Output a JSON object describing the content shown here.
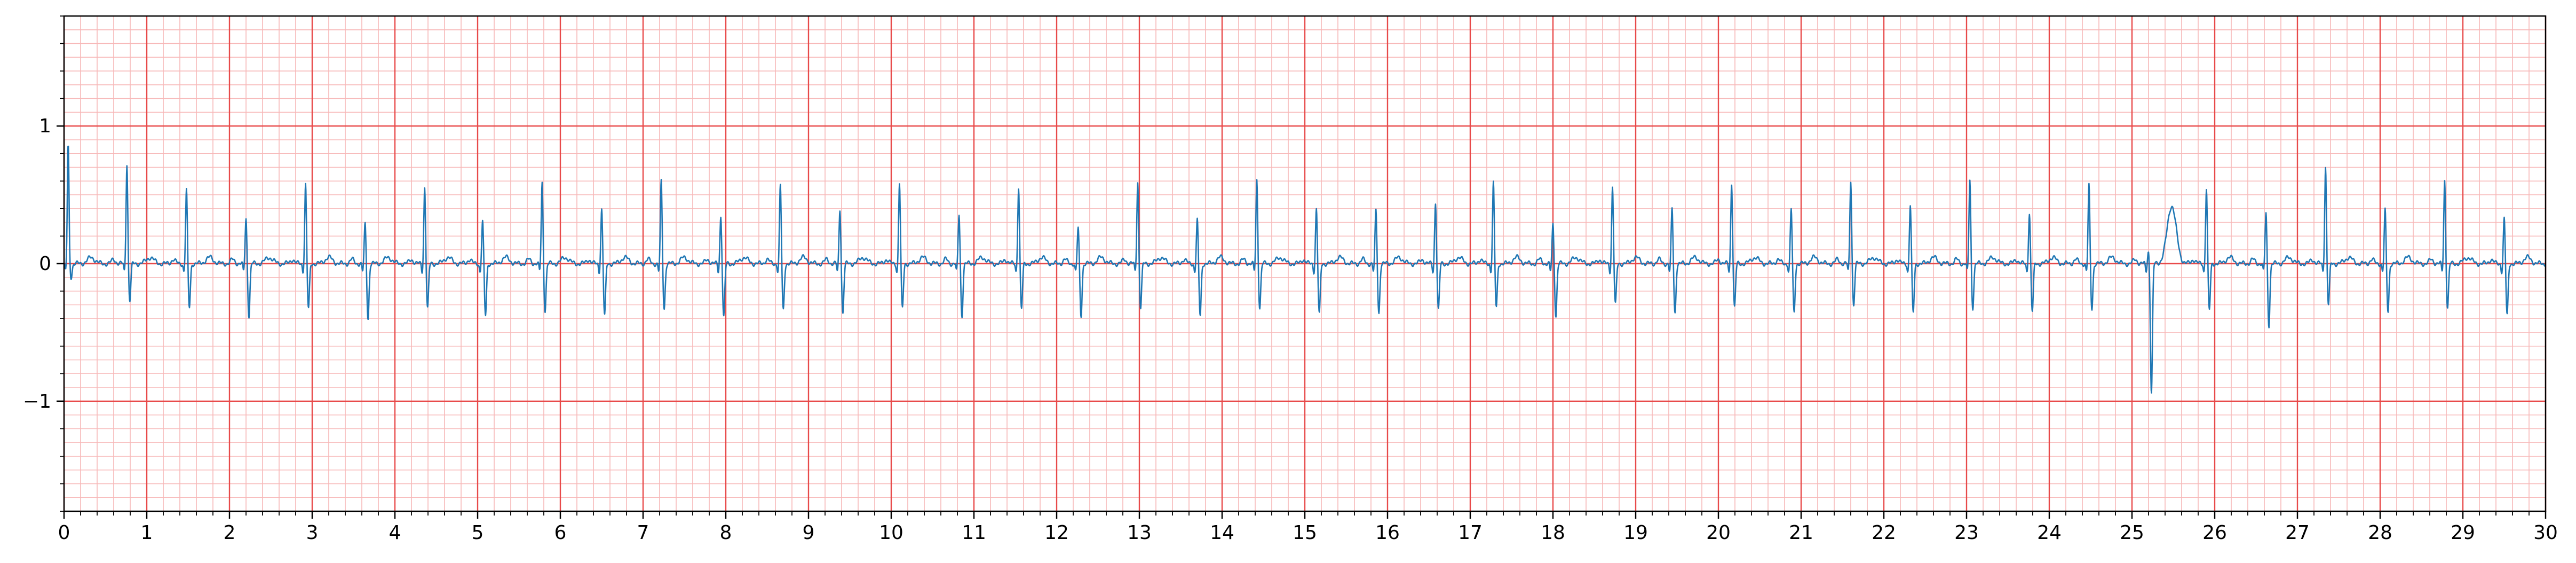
{
  "chart_data": {
    "type": "line",
    "title": "",
    "xlabel": "",
    "ylabel": "",
    "xlim": [
      0,
      30
    ],
    "ylim": [
      -1.8,
      1.8
    ],
    "x_ticks": [
      0,
      1,
      2,
      3,
      4,
      5,
      6,
      7,
      8,
      9,
      10,
      11,
      12,
      13,
      14,
      15,
      16,
      17,
      18,
      19,
      20,
      21,
      22,
      23,
      24,
      25,
      26,
      27,
      28,
      29,
      30
    ],
    "y_ticks": [
      -1,
      0,
      1
    ],
    "y_tick_labels": [
      "−1",
      "0",
      "1"
    ],
    "grid": true,
    "grid_major_color": "#e84a4a",
    "grid_minor_color": "#f7b8b8",
    "line_color": "#1f77b4",
    "series": [
      {
        "name": "",
        "beats": [
          {
            "t": 0.05,
            "r": 0.86,
            "s": -0.1
          },
          {
            "t": 0.76,
            "r": 0.73,
            "s": -0.27
          },
          {
            "t": 1.48,
            "r": 0.54,
            "s": -0.32
          },
          {
            "t": 2.2,
            "r": 0.33,
            "s": -0.38
          },
          {
            "t": 2.92,
            "r": 0.58,
            "s": -0.33
          },
          {
            "t": 3.64,
            "r": 0.29,
            "s": -0.4
          },
          {
            "t": 4.36,
            "r": 0.56,
            "s": -0.33
          },
          {
            "t": 5.06,
            "r": 0.31,
            "s": -0.38
          },
          {
            "t": 5.78,
            "r": 0.59,
            "s": -0.34
          },
          {
            "t": 6.5,
            "r": 0.4,
            "s": -0.38
          },
          {
            "t": 7.22,
            "r": 0.6,
            "s": -0.33
          },
          {
            "t": 7.94,
            "r": 0.35,
            "s": -0.39
          },
          {
            "t": 8.66,
            "r": 0.57,
            "s": -0.34
          },
          {
            "t": 9.38,
            "r": 0.4,
            "s": -0.36
          },
          {
            "t": 10.1,
            "r": 0.59,
            "s": -0.33
          },
          {
            "t": 10.82,
            "r": 0.36,
            "s": -0.38
          },
          {
            "t": 11.54,
            "r": 0.56,
            "s": -0.33
          },
          {
            "t": 12.26,
            "r": 0.26,
            "s": -0.38
          },
          {
            "t": 12.98,
            "r": 0.6,
            "s": -0.32
          },
          {
            "t": 13.7,
            "r": 0.32,
            "s": -0.38
          },
          {
            "t": 14.42,
            "r": 0.61,
            "s": -0.32
          },
          {
            "t": 15.14,
            "r": 0.4,
            "s": -0.37
          },
          {
            "t": 15.86,
            "r": 0.39,
            "s": -0.36
          },
          {
            "t": 16.58,
            "r": 0.45,
            "s": -0.34
          },
          {
            "t": 17.28,
            "r": 0.59,
            "s": -0.32
          },
          {
            "t": 18.0,
            "r": 0.29,
            "s": -0.38
          },
          {
            "t": 18.72,
            "r": 0.56,
            "s": -0.3
          },
          {
            "t": 19.44,
            "r": 0.4,
            "s": -0.36
          },
          {
            "t": 20.16,
            "r": 0.59,
            "s": -0.32
          },
          {
            "t": 20.88,
            "r": 0.4,
            "s": -0.36
          },
          {
            "t": 21.6,
            "r": 0.61,
            "s": -0.3
          },
          {
            "t": 22.32,
            "r": 0.43,
            "s": -0.36
          },
          {
            "t": 23.04,
            "r": 0.61,
            "s": -0.32
          },
          {
            "t": 23.76,
            "r": 0.37,
            "s": -0.35
          },
          {
            "t": 24.48,
            "r": 0.57,
            "s": -0.33
          },
          {
            "t": 25.2,
            "r": 0.1,
            "s": -0.94,
            "t_wave": 0.42
          },
          {
            "t": 25.9,
            "r": 0.55,
            "s": -0.34
          },
          {
            "t": 26.62,
            "r": 0.37,
            "s": -0.45
          },
          {
            "t": 27.34,
            "r": 0.71,
            "s": -0.3
          },
          {
            "t": 28.06,
            "r": 0.39,
            "s": -0.35
          },
          {
            "t": 28.78,
            "r": 0.61,
            "s": -0.32
          },
          {
            "t": 29.5,
            "r": 0.33,
            "s": -0.38
          }
        ]
      }
    ]
  }
}
